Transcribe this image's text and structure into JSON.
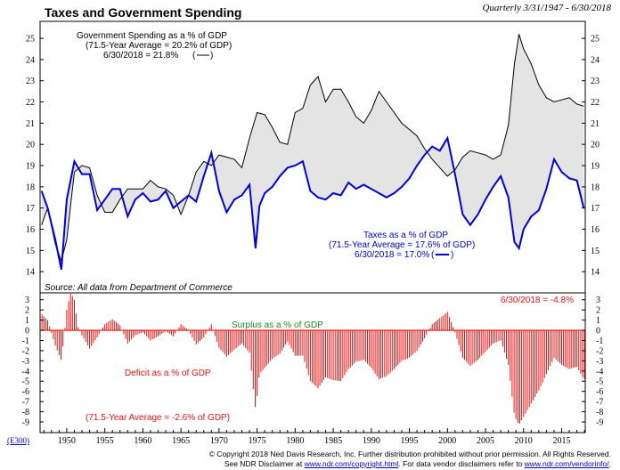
{
  "chart_title": "Taxes and Government Spending",
  "subtitle": "Quarterly 3/31/1947 - 6/30/2018",
  "source_note": "Source: All data from Department of Commerce",
  "ref_code": "(E300)",
  "footer": {
    "line1": "© Copyright 2018 Ned Davis Research, Inc. Further distribution prohibited without prior permission. All Rights Reserved.",
    "line2_pre": "See NDR Disclaimer at ",
    "line2_link1": "www.ndr.com/copyright.html",
    "line2_mid": ". For data vendor disclaimers refer to ",
    "line2_link2": "www.ndr.com/vendorinfo/",
    "line2_post": "."
  },
  "colors": {
    "spending": "#000000",
    "taxes": "#0000dd",
    "fill": "#e4e4e4",
    "deficit": "#ee1111",
    "surplus_text": "#1a8a1a"
  },
  "chart_data": [
    {
      "type": "line",
      "name": "upper-panel",
      "ylim": [
        13,
        25.8
      ],
      "xlim": [
        1947,
        2018.6
      ],
      "y_ticks": [
        14,
        15,
        16,
        17,
        18,
        19,
        20,
        21,
        22,
        23,
        24,
        25
      ],
      "x_ticks": [
        1950,
        1955,
        1960,
        1965,
        1970,
        1975,
        1980,
        1985,
        1990,
        1995,
        2000,
        2005,
        2010,
        2015
      ],
      "grid": false,
      "annotations": {
        "spending_1": "Government Spending as a % of GDP",
        "spending_2": "(71.5-Year Average = 20.2% of GDP)",
        "spending_3": "6/30/2018 =  21.8%",
        "taxes_1": "Taxes as a % of GDP",
        "taxes_2": "(71.5-Year Average = 17.6% of GDP)",
        "taxes_3": "6/30/2018 =  17.0%"
      },
      "series": [
        {
          "name": "Government Spending as a % of GDP",
          "x": [
            1947.2,
            1948,
            1949,
            1949.8,
            1950.5,
            1951.5,
            1952.5,
            1953.5,
            1954.5,
            1955.5,
            1956.5,
            1957.5,
            1958.5,
            1959.5,
            1960.5,
            1961.5,
            1962.5,
            1963.5,
            1964.5,
            1965.5,
            1966.5,
            1967.5,
            1968.5,
            1969.5,
            1970.5,
            1971.5,
            1972.5,
            1973.5,
            1974.5,
            1975.5,
            1976.5,
            1977.5,
            1978.5,
            1979.5,
            1980.5,
            1981.5,
            1982.5,
            1983.5,
            1984.5,
            1985.5,
            1986.5,
            1987.5,
            1988.5,
            1989.5,
            1990.5,
            1991.5,
            1992.5,
            1993.5,
            1994.5,
            1995.5,
            1996.5,
            1997.5,
            1998.5,
            1999.5,
            2000.5,
            2001.5,
            2002.5,
            2003.5,
            2004.5,
            2005.5,
            2006.5,
            2007.5,
            2008.5,
            2009.3,
            2009.9,
            2010.5,
            2011.5,
            2012.5,
            2013.5,
            2014.5,
            2015.5,
            2016.5,
            2017.5,
            2018.4
          ],
          "values": [
            16.2,
            17.0,
            15.3,
            14.5,
            15.5,
            18.7,
            19.0,
            18.9,
            17.6,
            16.8,
            16.8,
            17.4,
            17.9,
            17.9,
            17.9,
            18.3,
            18.0,
            17.9,
            17.6,
            16.7,
            17.6,
            18.7,
            19.2,
            19.0,
            19.5,
            19.4,
            19.3,
            18.9,
            20.3,
            21.5,
            21.4,
            20.8,
            20.1,
            20.0,
            21.5,
            21.7,
            22.8,
            23.2,
            22.0,
            22.6,
            22.6,
            22.0,
            21.3,
            21.0,
            21.6,
            22.5,
            22.0,
            21.5,
            21.0,
            20.7,
            20.4,
            19.8,
            19.3,
            18.9,
            18.5,
            18.8,
            19.4,
            19.7,
            19.6,
            19.5,
            19.3,
            19.5,
            20.9,
            23.8,
            25.2,
            24.5,
            23.8,
            22.8,
            22.2,
            22.0,
            22.1,
            22.2,
            21.9,
            21.8
          ]
        },
        {
          "name": "Taxes as a % of GDP",
          "x": [
            1947.2,
            1948,
            1949,
            1949.8,
            1950.5,
            1951.5,
            1952.5,
            1953.5,
            1954.5,
            1955.5,
            1956.5,
            1957.5,
            1958.5,
            1959.5,
            1960.5,
            1961.5,
            1962.5,
            1963.5,
            1964.5,
            1965.5,
            1966.5,
            1967.5,
            1968.5,
            1969.5,
            1970.5,
            1971.5,
            1972.5,
            1973.5,
            1974.5,
            1975.3,
            1975.8,
            1976.5,
            1977.5,
            1978.5,
            1979.5,
            1980.5,
            1981.5,
            1982.5,
            1983.5,
            1984.5,
            1985.5,
            1986.5,
            1987.5,
            1988.5,
            1989.5,
            1990.5,
            1991.5,
            1992.5,
            1993.5,
            1994.5,
            1995.5,
            1996.5,
            1997.5,
            1998.5,
            1999.5,
            2000.5,
            2001.5,
            2002.5,
            2003.5,
            2004.5,
            2005.5,
            2006.5,
            2007.5,
            2008.5,
            2009.3,
            2009.9,
            2010.5,
            2011.5,
            2012.5,
            2013.5,
            2014.5,
            2015.5,
            2016.5,
            2017.5,
            2018.4
          ],
          "values": [
            17.8,
            17.0,
            15.5,
            14.1,
            17.4,
            19.2,
            18.6,
            18.6,
            16.9,
            17.4,
            17.9,
            17.9,
            16.6,
            17.4,
            17.7,
            17.3,
            17.4,
            17.8,
            17.0,
            17.3,
            17.6,
            17.3,
            18.5,
            19.6,
            17.8,
            16.8,
            17.4,
            17.6,
            18.1,
            15.1,
            17.1,
            17.7,
            18.0,
            18.5,
            18.9,
            19.0,
            19.2,
            17.8,
            17.5,
            17.4,
            17.7,
            17.6,
            18.2,
            17.9,
            18.1,
            17.9,
            17.7,
            17.5,
            17.7,
            18.0,
            18.4,
            19.0,
            19.5,
            19.9,
            19.7,
            20.3,
            18.6,
            16.7,
            16.2,
            16.7,
            17.4,
            18.0,
            18.5,
            17.5,
            15.4,
            15.1,
            16.0,
            16.6,
            16.9,
            17.9,
            19.3,
            18.7,
            18.4,
            18.3,
            17.0
          ]
        }
      ]
    },
    {
      "type": "bar",
      "name": "lower-panel",
      "ylim": [
        -9.7,
        3.5
      ],
      "xlim": [
        1947,
        2018.6
      ],
      "y_ticks": [
        3,
        2,
        1,
        0,
        -1,
        -2,
        -3,
        -4,
        -5,
        -6,
        -7,
        -8,
        -9
      ],
      "annotations": {
        "latest": "6/30/2018 = -4.8%",
        "surplus": "Surplus as a % of GDP",
        "deficit": "Deficit as a % of GDP",
        "average": "(71.5-Year Average = -2.6% of GDP)"
      },
      "series": [
        {
          "name": "Surplus/Deficit as a % of GDP",
          "x": [
            1947.2,
            1948,
            1949,
            1949.8,
            1950.5,
            1951,
            1951.5,
            1952,
            1952.5,
            1953.5,
            1954.5,
            1955.5,
            1956.5,
            1957.5,
            1958.5,
            1959.5,
            1960.5,
            1961.5,
            1962.5,
            1963.5,
            1964.5,
            1965.5,
            1966.5,
            1967.5,
            1968.5,
            1969.5,
            1970.5,
            1971.5,
            1972.5,
            1973.5,
            1974.5,
            1975.3,
            1975.8,
            1976.5,
            1977.5,
            1978.5,
            1979.5,
            1980.5,
            1981.5,
            1982.5,
            1983.5,
            1984.5,
            1985.5,
            1986.5,
            1987.5,
            1988.5,
            1989.5,
            1990.5,
            1991.5,
            1992.5,
            1993.5,
            1994.5,
            1995.5,
            1996.5,
            1997.5,
            1998.5,
            1999.5,
            2000.5,
            2001.5,
            2002.5,
            2003.5,
            2004.5,
            2005.5,
            2006.5,
            2007.5,
            2008.5,
            2009.3,
            2009.9,
            2010.5,
            2011.5,
            2012.5,
            2013.5,
            2014.5,
            2015.5,
            2016.5,
            2017.5,
            2018.4
          ],
          "values": [
            1.6,
            1.0,
            -1.5,
            -3.0,
            2.0,
            3.7,
            3.0,
            0.3,
            -0.5,
            -1.8,
            -0.7,
            0.6,
            1.1,
            0.5,
            -1.3,
            -0.5,
            -0.2,
            -1.0,
            -0.6,
            -0.1,
            -0.6,
            0.6,
            0.0,
            -1.4,
            -0.7,
            0.6,
            -1.7,
            -2.6,
            -1.9,
            -1.3,
            -2.2,
            -7.9,
            -4.3,
            -3.7,
            -2.8,
            -2.3,
            -1.1,
            -2.5,
            -2.5,
            -5.0,
            -5.7,
            -4.6,
            -4.9,
            -5.0,
            -3.8,
            -3.1,
            -2.9,
            -3.7,
            -4.8,
            -4.5,
            -3.8,
            -3.0,
            -2.7,
            -2.0,
            -0.8,
            0.6,
            1.2,
            1.8,
            -0.2,
            -2.7,
            -3.5,
            -2.9,
            -2.1,
            -1.3,
            -1.0,
            -3.4,
            -8.4,
            -9.3,
            -8.5,
            -7.2,
            -5.9,
            -4.3,
            -2.7,
            -3.4,
            -3.8,
            -3.6,
            -4.8
          ]
        }
      ]
    }
  ]
}
